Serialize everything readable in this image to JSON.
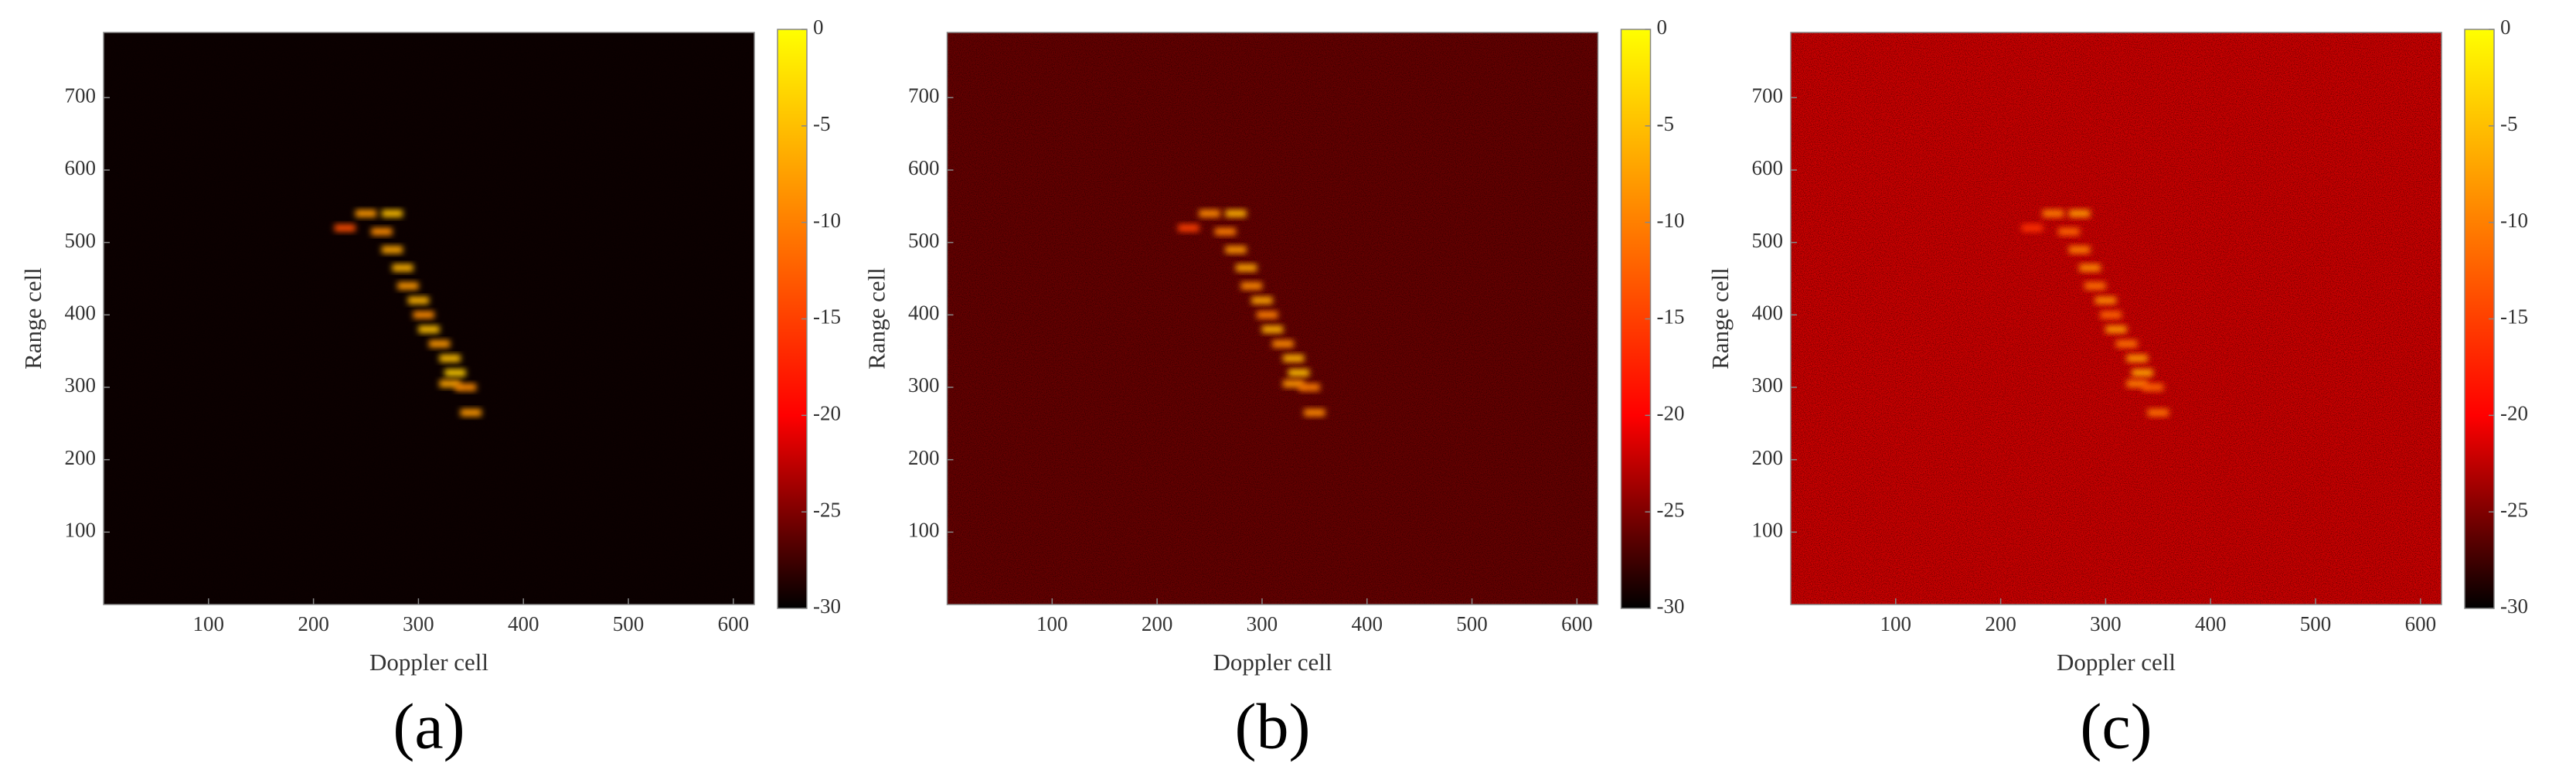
{
  "chart_data": [
    {
      "type": "heatmap",
      "caption": "(a)",
      "x_label": "Doppler cell",
      "y_label": "Range cell",
      "xlim": [
        0,
        620
      ],
      "xticks": [
        100,
        200,
        300,
        400,
        500,
        600
      ],
      "ylim": [
        0,
        790
      ],
      "yticks": [
        100,
        200,
        300,
        400,
        500,
        600,
        700
      ],
      "clim": [
        -30,
        0
      ],
      "cticks": [
        0,
        -5,
        -10,
        -15,
        -20,
        -25,
        -30
      ],
      "colormap": [
        {
          "value": -30,
          "color": "#000000"
        },
        {
          "value": -20,
          "color": "#ff0000"
        },
        {
          "value": 0,
          "color": "#ffff00"
        }
      ],
      "noise_level": -29.5,
      "cells": [
        {
          "x": 250,
          "y": 540,
          "v": -8
        },
        {
          "x": 275,
          "y": 540,
          "v": -5
        },
        {
          "x": 230,
          "y": 520,
          "v": -14
        },
        {
          "x": 265,
          "y": 515,
          "v": -9
        },
        {
          "x": 275,
          "y": 490,
          "v": -7
        },
        {
          "x": 285,
          "y": 465,
          "v": -6
        },
        {
          "x": 290,
          "y": 440,
          "v": -8
        },
        {
          "x": 300,
          "y": 420,
          "v": -6
        },
        {
          "x": 305,
          "y": 400,
          "v": -9
        },
        {
          "x": 310,
          "y": 380,
          "v": -5
        },
        {
          "x": 320,
          "y": 360,
          "v": -8
        },
        {
          "x": 330,
          "y": 340,
          "v": -5
        },
        {
          "x": 335,
          "y": 320,
          "v": -4
        },
        {
          "x": 330,
          "y": 305,
          "v": -7
        },
        {
          "x": 345,
          "y": 300,
          "v": -9
        },
        {
          "x": 350,
          "y": 265,
          "v": -8
        }
      ]
    },
    {
      "type": "heatmap",
      "caption": "(b)",
      "x_label": "Doppler cell",
      "y_label": "Range cell",
      "xlim": [
        0,
        620
      ],
      "xticks": [
        100,
        200,
        300,
        400,
        500,
        600
      ],
      "ylim": [
        0,
        790
      ],
      "yticks": [
        100,
        200,
        300,
        400,
        500,
        600,
        700
      ],
      "clim": [
        -30,
        0
      ],
      "cticks": [
        0,
        -5,
        -10,
        -15,
        -20,
        -25,
        -30
      ],
      "colormap": [
        {
          "value": -30,
          "color": "#000000"
        },
        {
          "value": -20,
          "color": "#ff0000"
        },
        {
          "value": 0,
          "color": "#ffff00"
        }
      ],
      "noise_level": -26,
      "cells": [
        {
          "x": 250,
          "y": 540,
          "v": -9
        },
        {
          "x": 275,
          "y": 540,
          "v": -6
        },
        {
          "x": 230,
          "y": 520,
          "v": -15
        },
        {
          "x": 265,
          "y": 515,
          "v": -10
        },
        {
          "x": 275,
          "y": 490,
          "v": -8
        },
        {
          "x": 285,
          "y": 465,
          "v": -7
        },
        {
          "x": 290,
          "y": 440,
          "v": -9
        },
        {
          "x": 300,
          "y": 420,
          "v": -7
        },
        {
          "x": 305,
          "y": 400,
          "v": -10
        },
        {
          "x": 310,
          "y": 380,
          "v": -6
        },
        {
          "x": 320,
          "y": 360,
          "v": -9
        },
        {
          "x": 330,
          "y": 340,
          "v": -6
        },
        {
          "x": 335,
          "y": 320,
          "v": -5
        },
        {
          "x": 330,
          "y": 305,
          "v": -8
        },
        {
          "x": 345,
          "y": 300,
          "v": -10
        },
        {
          "x": 350,
          "y": 265,
          "v": -9
        }
      ]
    },
    {
      "type": "heatmap",
      "caption": "(c)",
      "x_label": "Doppler cell",
      "y_label": "Range cell",
      "xlim": [
        0,
        620
      ],
      "xticks": [
        100,
        200,
        300,
        400,
        500,
        600
      ],
      "ylim": [
        0,
        790
      ],
      "yticks": [
        100,
        200,
        300,
        400,
        500,
        600,
        700
      ],
      "clim": [
        -30,
        0
      ],
      "cticks": [
        0,
        -5,
        -10,
        -15,
        -20,
        -25,
        -30
      ],
      "colormap": [
        {
          "value": -30,
          "color": "#000000"
        },
        {
          "value": -20,
          "color": "#ff0000"
        },
        {
          "value": 0,
          "color": "#ffff00"
        }
      ],
      "noise_level": -22,
      "cells": [
        {
          "x": 250,
          "y": 540,
          "v": -10
        },
        {
          "x": 275,
          "y": 540,
          "v": -8
        },
        {
          "x": 230,
          "y": 520,
          "v": -16
        },
        {
          "x": 265,
          "y": 515,
          "v": -12
        },
        {
          "x": 275,
          "y": 490,
          "v": -10
        },
        {
          "x": 285,
          "y": 465,
          "v": -9
        },
        {
          "x": 290,
          "y": 440,
          "v": -11
        },
        {
          "x": 300,
          "y": 420,
          "v": -9
        },
        {
          "x": 305,
          "y": 400,
          "v": -12
        },
        {
          "x": 310,
          "y": 380,
          "v": -8
        },
        {
          "x": 320,
          "y": 360,
          "v": -11
        },
        {
          "x": 330,
          "y": 340,
          "v": -8
        },
        {
          "x": 335,
          "y": 320,
          "v": -7
        },
        {
          "x": 330,
          "y": 305,
          "v": -10
        },
        {
          "x": 345,
          "y": 300,
          "v": -12
        },
        {
          "x": 350,
          "y": 265,
          "v": -11
        }
      ]
    }
  ]
}
